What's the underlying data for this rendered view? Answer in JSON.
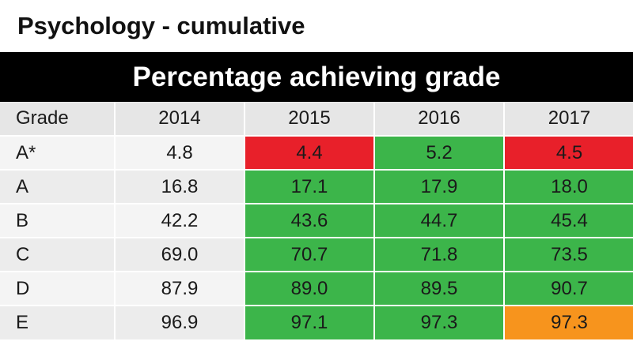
{
  "title": "Psychology - cumulative",
  "banner": "Percentage achieving grade",
  "table": {
    "header": [
      "Grade",
      "2014",
      "2015",
      "2016",
      "2017"
    ],
    "rows": [
      {
        "grade": "A*",
        "values": [
          "4.8",
          "4.4",
          "5.2",
          "4.5"
        ],
        "status": [
          "none",
          "red",
          "green",
          "red"
        ]
      },
      {
        "grade": "A",
        "values": [
          "16.8",
          "17.1",
          "17.9",
          "18.0"
        ],
        "status": [
          "none",
          "green",
          "green",
          "green"
        ]
      },
      {
        "grade": "B",
        "values": [
          "42.2",
          "43.6",
          "44.7",
          "45.4"
        ],
        "status": [
          "none",
          "green",
          "green",
          "green"
        ]
      },
      {
        "grade": "C",
        "values": [
          "69.0",
          "70.7",
          "71.8",
          "73.5"
        ],
        "status": [
          "none",
          "green",
          "green",
          "green"
        ]
      },
      {
        "grade": "D",
        "values": [
          "87.9",
          "89.0",
          "89.5",
          "90.7"
        ],
        "status": [
          "none",
          "green",
          "green",
          "green"
        ]
      },
      {
        "grade": "E",
        "values": [
          "96.9",
          "97.1",
          "97.3",
          "97.3"
        ],
        "status": [
          "none",
          "green",
          "green",
          "orange"
        ]
      }
    ]
  },
  "colors": {
    "green": "#3cb54a",
    "red": "#e8202a",
    "orange": "#f7941d",
    "banner_bg": "#000000"
  }
}
